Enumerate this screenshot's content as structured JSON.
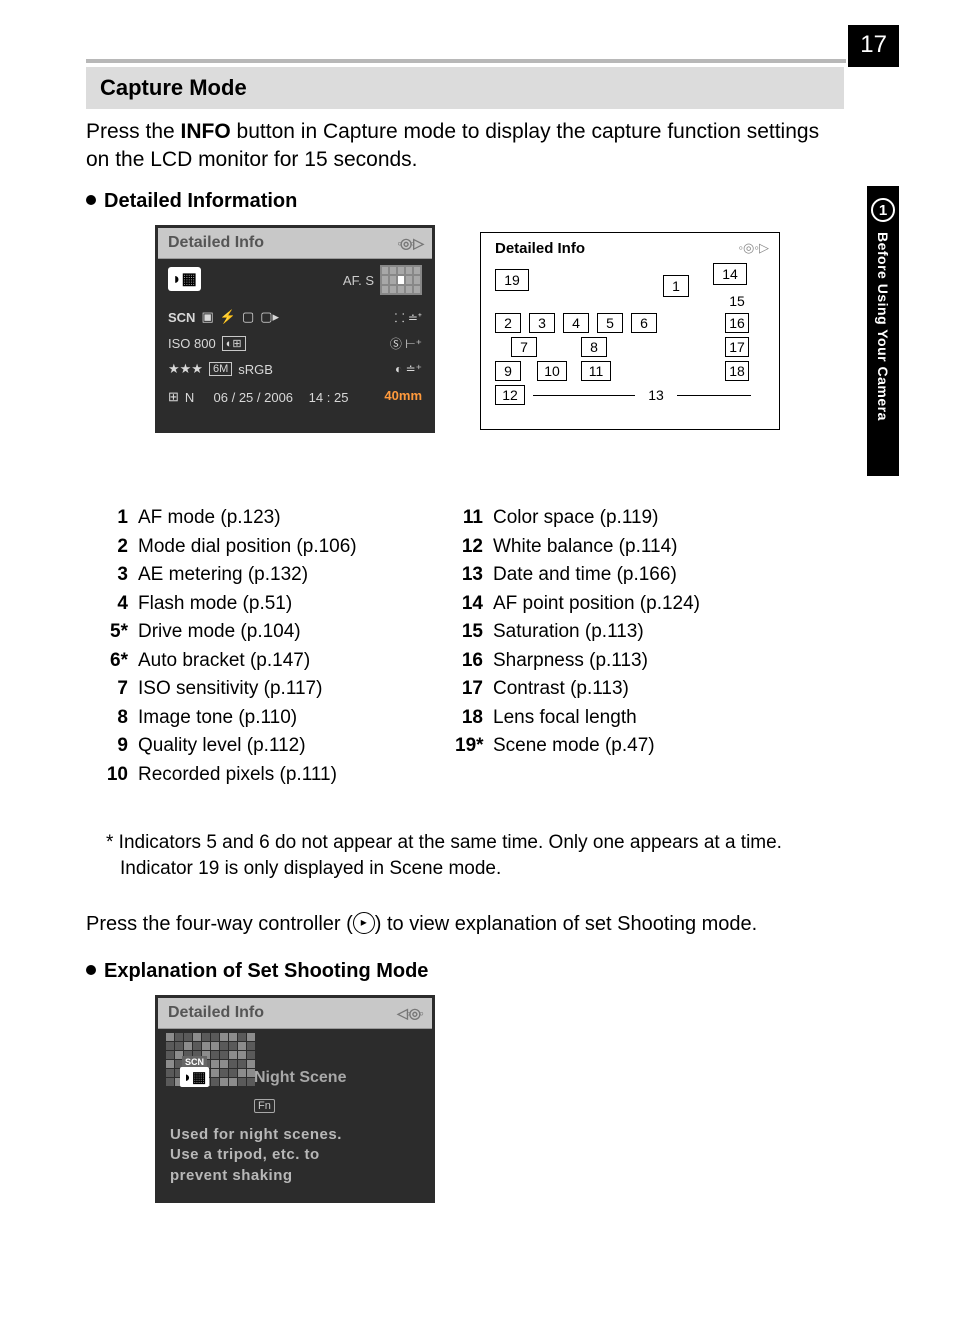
{
  "page_number": "17",
  "sidebar": {
    "chapter_num": "1",
    "chapter_title": "Before Using Your Camera"
  },
  "section_title": "Capture Mode",
  "intro_line1": "Press the ",
  "intro_bold": "INFO",
  "intro_line2": " button in Capture mode to display the capture function settings on the LCD monitor for 15 seconds.",
  "sub1": "Detailed Information",
  "sub2": "Explanation of Set Shooting Mode",
  "lcd1": {
    "title": "Detailed Info",
    "af_label": "AF. S",
    "row_icons_left": "SCN",
    "iso": "ISO  800",
    "stars": "★★★",
    "mp": "6M",
    "srgb": "sRGB",
    "lens": "40mm",
    "wb": "N",
    "date": "06 / 25 / 2006",
    "time": "14 : 25"
  },
  "diagram": {
    "title": "Detailed Info",
    "boxes": {
      "b1": "1",
      "b2": "2",
      "b3": "3",
      "b4": "4",
      "b5": "5",
      "b6": "6",
      "b7": "7",
      "b8": "8",
      "b9": "9",
      "b10": "10",
      "b11": "11",
      "b12": "12",
      "b13": "13",
      "b14": "14",
      "b15": "15",
      "b16": "16",
      "b17": "17",
      "b18": "18",
      "b19": "19"
    }
  },
  "legend_left": [
    {
      "n": "1",
      "t": "AF mode (p.123)"
    },
    {
      "n": "2",
      "t": "Mode dial position (p.106)"
    },
    {
      "n": "3",
      "t": "AE metering (p.132)"
    },
    {
      "n": "4",
      "t": "Flash mode (p.51)"
    },
    {
      "n": "5*",
      "t": "Drive mode (p.104)"
    },
    {
      "n": "6*",
      "t": "Auto bracket (p.147)"
    },
    {
      "n": "7",
      "t": "ISO sensitivity (p.117)"
    },
    {
      "n": "8",
      "t": "Image tone (p.110)"
    },
    {
      "n": "9",
      "t": "Quality level (p.112)"
    },
    {
      "n": "10",
      "t": "Recorded pixels (p.111)"
    }
  ],
  "legend_right": [
    {
      "n": "11",
      "t": "Color space (p.119)"
    },
    {
      "n": "12",
      "t": "White balance (p.114)"
    },
    {
      "n": "13",
      "t": "Date and time (p.166)"
    },
    {
      "n": "14",
      "t": "AF point position (p.124)"
    },
    {
      "n": "15",
      "t": "Saturation (p.113)"
    },
    {
      "n": "16",
      "t": "Sharpness (p.113)"
    },
    {
      "n": "17",
      "t": "Contrast (p.113)"
    },
    {
      "n": "18",
      "t": "Lens focal length"
    },
    {
      "n": "19*",
      "t": "Scene mode (p.47)"
    }
  ],
  "footnote": "* Indicators 5 and 6 do not appear at the same time. Only one appears at a time. Indicator 19 is only displayed in Scene mode.",
  "press_before": "Press the four-way controller (",
  "press_after": ") to view explanation of set Shooting mode.",
  "lcd2": {
    "title": "Detailed Info",
    "scn": "SCN",
    "scene_name": "Night Scene",
    "fn": "Fn",
    "desc1": "Used for night scenes.",
    "desc2": "Use a tripod, etc. to",
    "desc3": "prevent shaking"
  },
  "colors": {
    "page_bg": "#ffffff",
    "header_bg": "#dcdcdc",
    "sidebar_bg": "#000000",
    "lcd_frame": "#2c2c2c",
    "lcd_title_bg": "#c8c8c8",
    "orange": "#ff9a3c"
  }
}
